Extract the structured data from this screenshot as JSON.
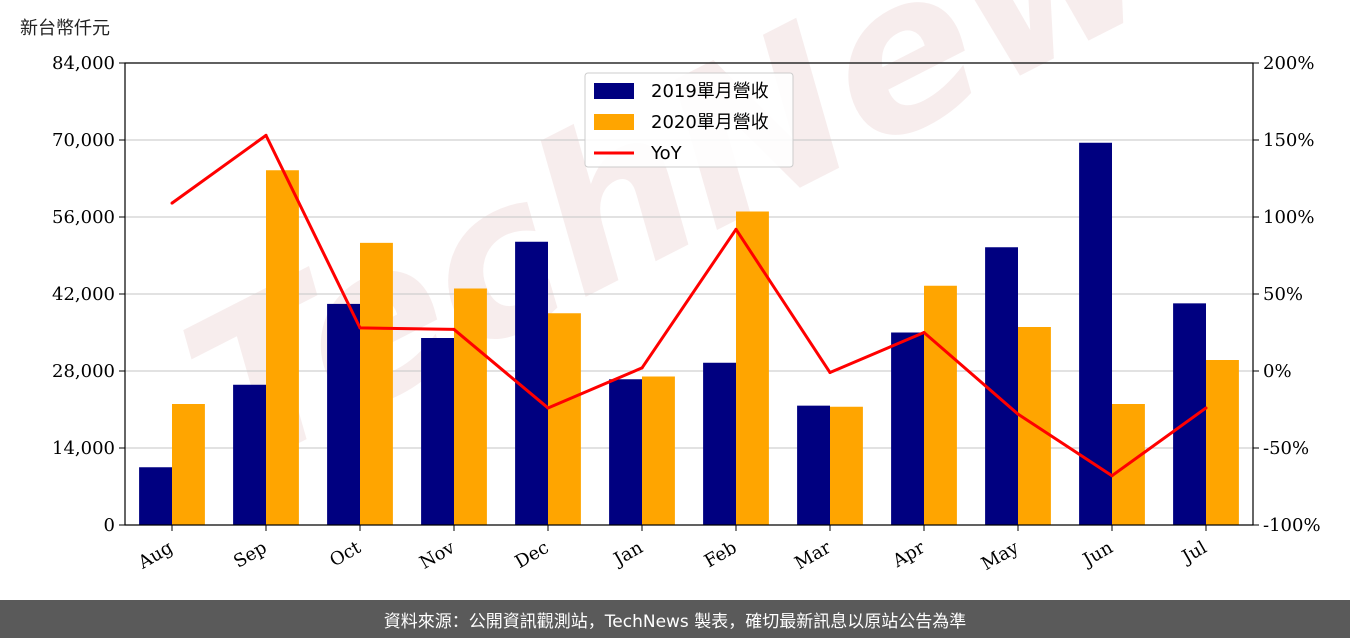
{
  "unit_label": "新台幣仟元",
  "watermark": "TechNews",
  "footer": "資料來源：公開資訊觀測站，TechNews 製表，確切最新訊息以原站公告為準",
  "colors": {
    "series_2019": "#000080",
    "series_2020": "#ffa500",
    "yoy": "#ff0000",
    "grid": "#d0d0d0"
  },
  "chart_data": {
    "type": "bar",
    "categories": [
      "Aug",
      "Sep",
      "Oct",
      "Nov",
      "Dec",
      "Jan",
      "Feb",
      "Mar",
      "Apr",
      "May",
      "Jun",
      "Jul"
    ],
    "series": [
      {
        "name": "2019單月營收",
        "type": "bar",
        "axis": "left",
        "values": [
          10500,
          25500,
          40200,
          34000,
          51500,
          26500,
          29500,
          21700,
          35000,
          50500,
          69500,
          40300
        ]
      },
      {
        "name": "2020單月營收",
        "type": "bar",
        "axis": "left",
        "values": [
          22000,
          64500,
          51300,
          43000,
          38500,
          27000,
          57000,
          21500,
          43500,
          36000,
          22000,
          30000
        ]
      },
      {
        "name": "YoY",
        "type": "line",
        "axis": "right",
        "values": [
          109,
          153,
          28,
          27,
          -24,
          2,
          92,
          -1,
          25,
          -28,
          -68,
          -24
        ]
      }
    ],
    "ylim": [
      0,
      84000
    ],
    "yticks": [
      "0",
      "14,000",
      "28,000",
      "42,000",
      "56,000",
      "70,000",
      "84,000"
    ],
    "y2lim": [
      -100,
      200
    ],
    "y2ticks": [
      "-100%",
      "-50%",
      "0%",
      "50%",
      "100%",
      "150%",
      "200%"
    ],
    "grid": true,
    "legend": "top-center"
  }
}
